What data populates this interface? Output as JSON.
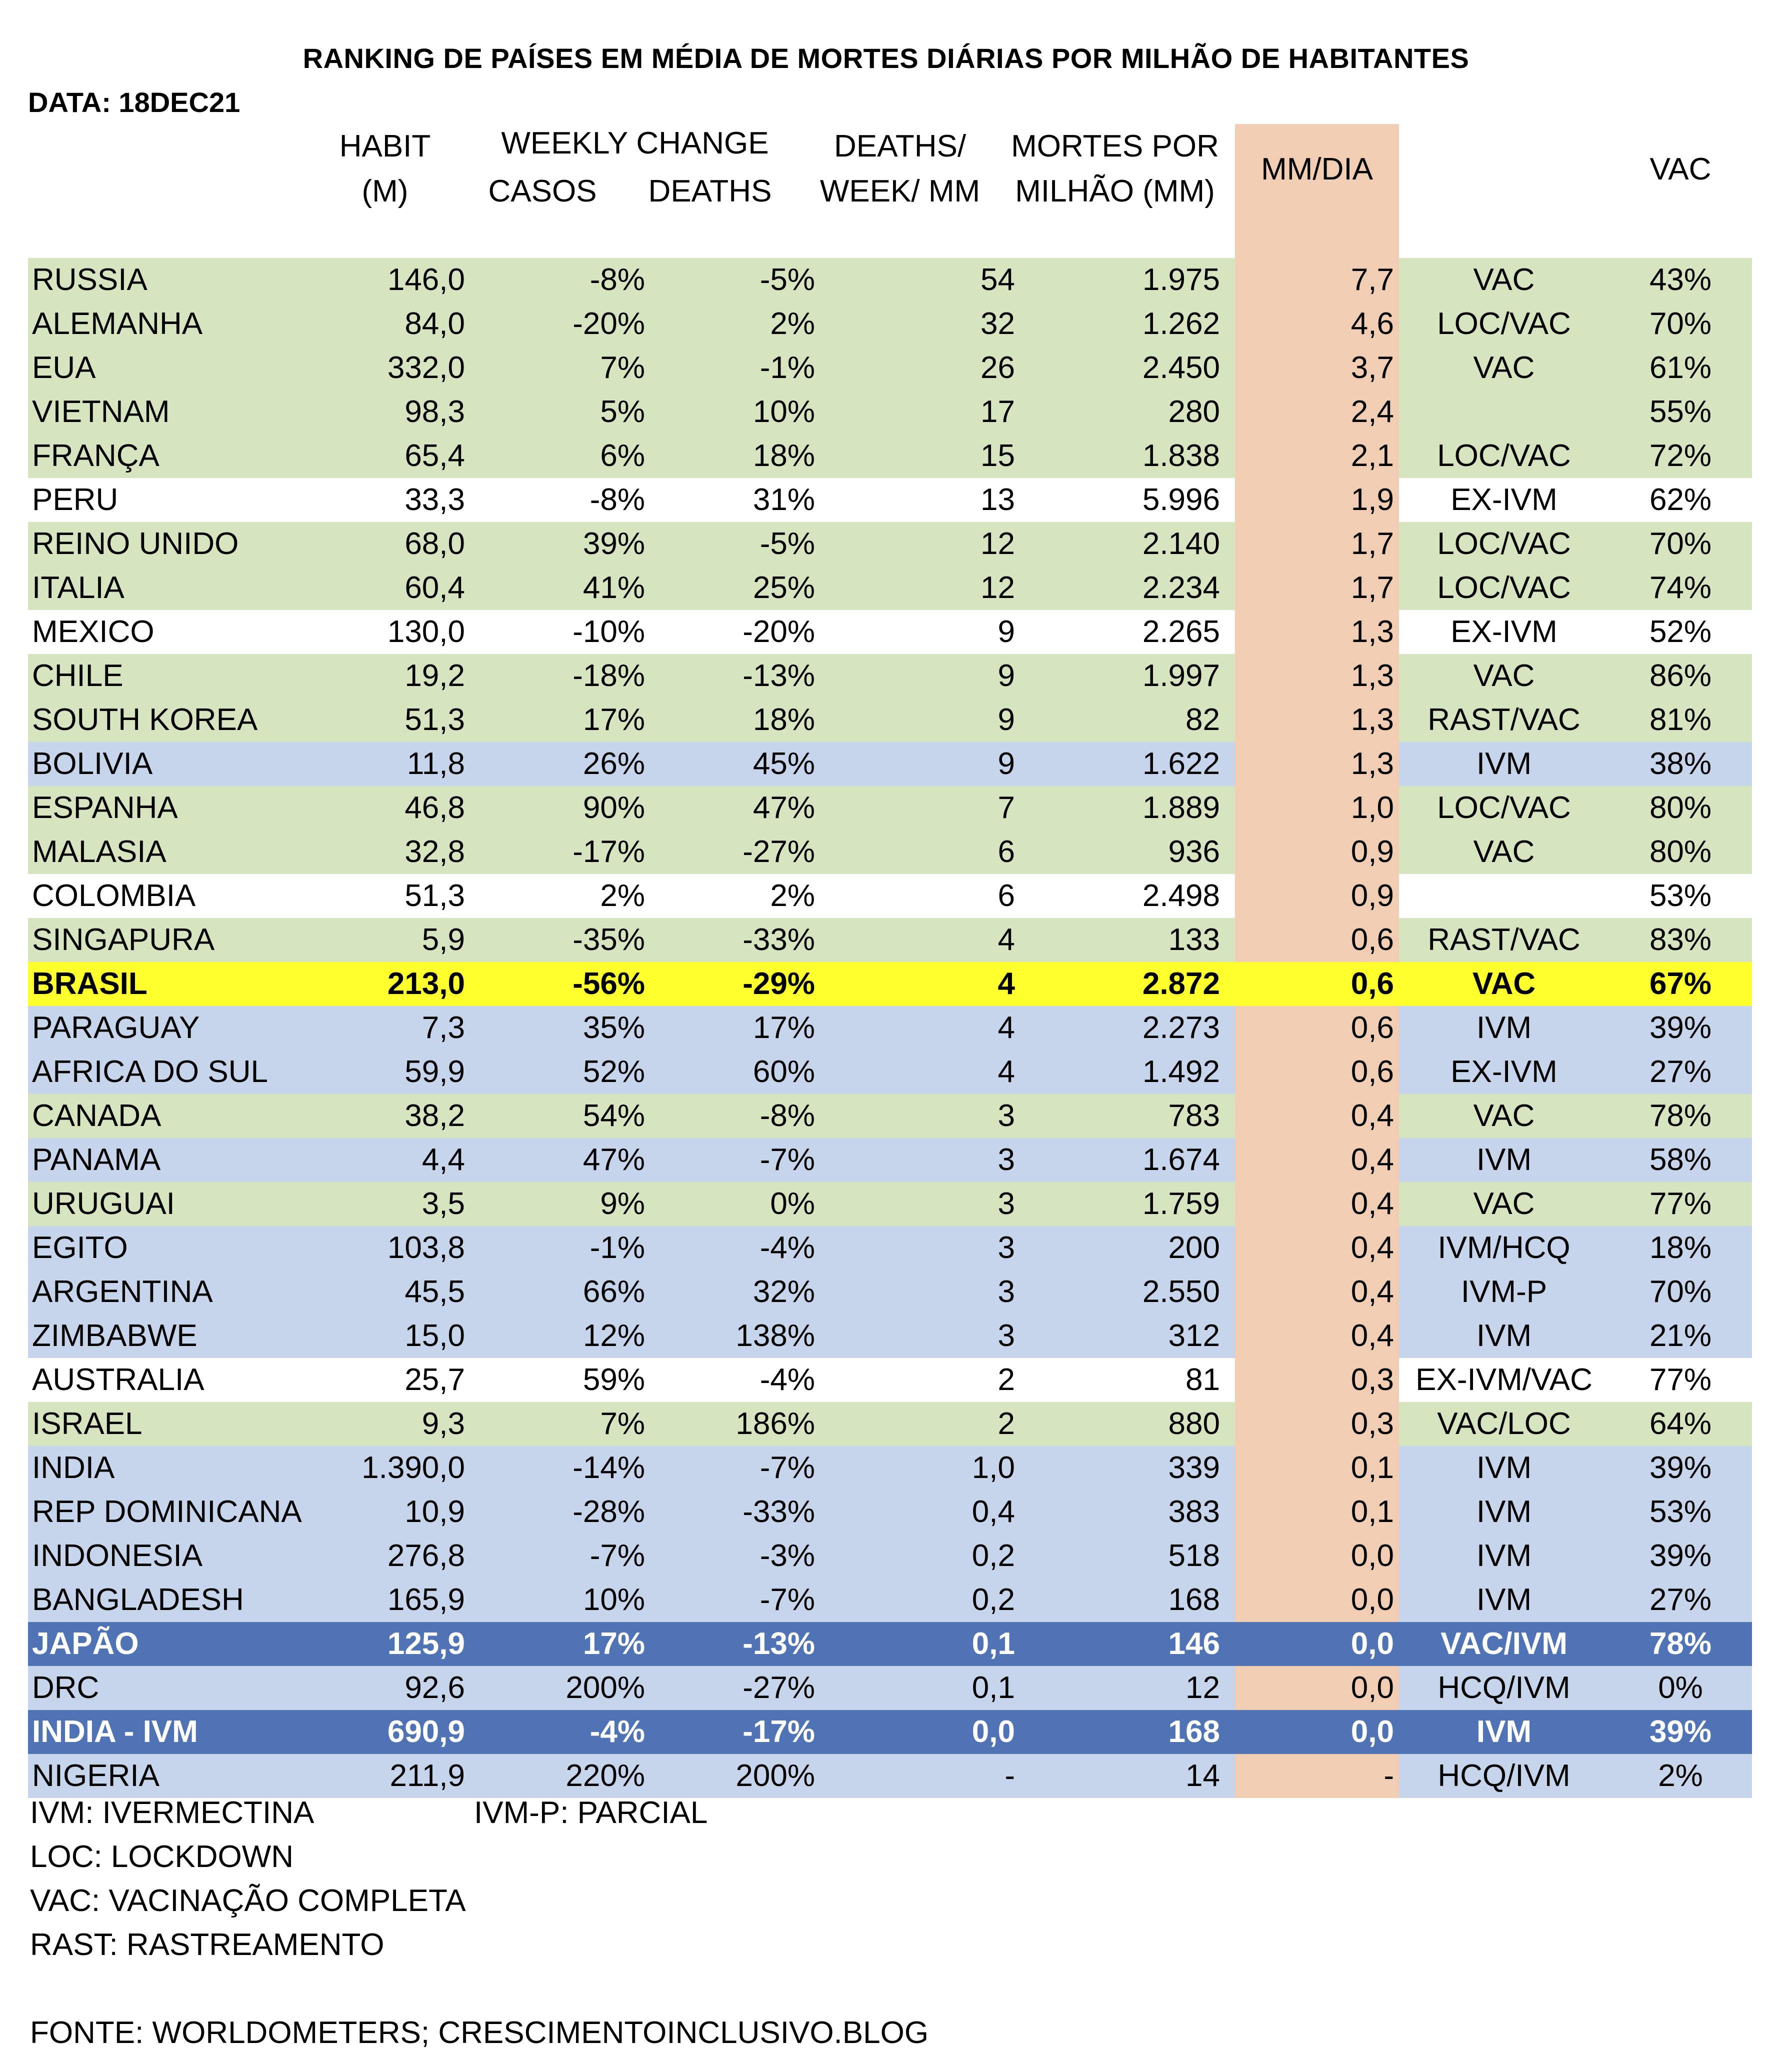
{
  "title": "RANKING DE PAÍSES EM MÉDIA DE MORTES DIÁRIAS POR MILHÃO DE HABITANTES",
  "date": "DATA: 18DEC21",
  "headers": {
    "habit_1": "HABIT",
    "habit_2": "(M)",
    "weekly_change": "WEEKLY CHANGE",
    "casos": "CASOS",
    "deaths": "DEATHS",
    "dwm_1": "DEATHS/",
    "dwm_2": "WEEK/ MM",
    "mortes_1": "MORTES POR",
    "mortes_2": "MILHÃO (MM)",
    "mmdia": "MM/DIA",
    "vac": "VAC"
  },
  "rows": [
    {
      "name": "RUSSIA",
      "habit": "146,0",
      "casos": "-8%",
      "deaths": "-5%",
      "dwm": "54",
      "mortes": "1.975",
      "mmdia": "7,7",
      "tag": "VAC",
      "vac": "43%",
      "color": "green"
    },
    {
      "name": "ALEMANHA",
      "habit": "84,0",
      "casos": "-20%",
      "deaths": "2%",
      "dwm": "32",
      "mortes": "1.262",
      "mmdia": "4,6",
      "tag": "LOC/VAC",
      "vac": "70%",
      "color": "green"
    },
    {
      "name": "EUA",
      "habit": "332,0",
      "casos": "7%",
      "deaths": "-1%",
      "dwm": "26",
      "mortes": "2.450",
      "mmdia": "3,7",
      "tag": "VAC",
      "vac": "61%",
      "color": "green"
    },
    {
      "name": "VIETNAM",
      "habit": "98,3",
      "casos": "5%",
      "deaths": "10%",
      "dwm": "17",
      "mortes": "280",
      "mmdia": "2,4",
      "tag": "",
      "vac": "55%",
      "color": "green"
    },
    {
      "name": "FRANÇA",
      "habit": "65,4",
      "casos": "6%",
      "deaths": "18%",
      "dwm": "15",
      "mortes": "1.838",
      "mmdia": "2,1",
      "tag": "LOC/VAC",
      "vac": "72%",
      "color": "green"
    },
    {
      "name": "PERU",
      "habit": "33,3",
      "casos": "-8%",
      "deaths": "31%",
      "dwm": "13",
      "mortes": "5.996",
      "mmdia": "1,9",
      "tag": "EX-IVM",
      "vac": "62%",
      "color": "white"
    },
    {
      "name": "REINO UNIDO",
      "habit": "68,0",
      "casos": "39%",
      "deaths": "-5%",
      "dwm": "12",
      "mortes": "2.140",
      "mmdia": "1,7",
      "tag": "LOC/VAC",
      "vac": "70%",
      "color": "green"
    },
    {
      "name": "ITALIA",
      "habit": "60,4",
      "casos": "41%",
      "deaths": "25%",
      "dwm": "12",
      "mortes": "2.234",
      "mmdia": "1,7",
      "tag": "LOC/VAC",
      "vac": "74%",
      "color": "green"
    },
    {
      "name": "MEXICO",
      "habit": "130,0",
      "casos": "-10%",
      "deaths": "-20%",
      "dwm": "9",
      "mortes": "2.265",
      "mmdia": "1,3",
      "tag": "EX-IVM",
      "vac": "52%",
      "color": "white"
    },
    {
      "name": "CHILE",
      "habit": "19,2",
      "casos": "-18%",
      "deaths": "-13%",
      "dwm": "9",
      "mortes": "1.997",
      "mmdia": "1,3",
      "tag": "VAC",
      "vac": "86%",
      "color": "green"
    },
    {
      "name": "SOUTH KOREA",
      "habit": "51,3",
      "casos": "17%",
      "deaths": "18%",
      "dwm": "9",
      "mortes": "82",
      "mmdia": "1,3",
      "tag": "RAST/VAC",
      "vac": "81%",
      "color": "green"
    },
    {
      "name": "BOLIVIA",
      "habit": "11,8",
      "casos": "26%",
      "deaths": "45%",
      "dwm": "9",
      "mortes": "1.622",
      "mmdia": "1,3",
      "tag": "IVM",
      "vac": "38%",
      "color": "blue"
    },
    {
      "name": "ESPANHA",
      "habit": "46,8",
      "casos": "90%",
      "deaths": "47%",
      "dwm": "7",
      "mortes": "1.889",
      "mmdia": "1,0",
      "tag": "LOC/VAC",
      "vac": "80%",
      "color": "green"
    },
    {
      "name": "MALASIA",
      "habit": "32,8",
      "casos": "-17%",
      "deaths": "-27%",
      "dwm": "6",
      "mortes": "936",
      "mmdia": "0,9",
      "tag": "VAC",
      "vac": "80%",
      "color": "green"
    },
    {
      "name": "COLOMBIA",
      "habit": "51,3",
      "casos": "2%",
      "deaths": "2%",
      "dwm": "6",
      "mortes": "2.498",
      "mmdia": "0,9",
      "tag": "",
      "vac": "53%",
      "color": "white"
    },
    {
      "name": "SINGAPURA",
      "habit": "5,9",
      "casos": "-35%",
      "deaths": "-33%",
      "dwm": "4",
      "mortes": "133",
      "mmdia": "0,6",
      "tag": "RAST/VAC",
      "vac": "83%",
      "color": "green"
    },
    {
      "name": "BRASIL",
      "habit": "213,0",
      "casos": "-56%",
      "deaths": "-29%",
      "dwm": "4",
      "mortes": "2.872",
      "mmdia": "0,6",
      "tag": "VAC",
      "vac": "67%",
      "color": "yellow"
    },
    {
      "name": "PARAGUAY",
      "habit": "7,3",
      "casos": "35%",
      "deaths": "17%",
      "dwm": "4",
      "mortes": "2.273",
      "mmdia": "0,6",
      "tag": "IVM",
      "vac": "39%",
      "color": "blue"
    },
    {
      "name": "AFRICA DO SUL",
      "habit": "59,9",
      "casos": "52%",
      "deaths": "60%",
      "dwm": "4",
      "mortes": "1.492",
      "mmdia": "0,6",
      "tag": "EX-IVM",
      "vac": "27%",
      "color": "blue"
    },
    {
      "name": "CANADA",
      "habit": "38,2",
      "casos": "54%",
      "deaths": "-8%",
      "dwm": "3",
      "mortes": "783",
      "mmdia": "0,4",
      "tag": "VAC",
      "vac": "78%",
      "color": "green"
    },
    {
      "name": "PANAMA",
      "habit": "4,4",
      "casos": "47%",
      "deaths": "-7%",
      "dwm": "3",
      "mortes": "1.674",
      "mmdia": "0,4",
      "tag": "IVM",
      "vac": "58%",
      "color": "blue"
    },
    {
      "name": "URUGUAI",
      "habit": "3,5",
      "casos": "9%",
      "deaths": "0%",
      "dwm": "3",
      "mortes": "1.759",
      "mmdia": "0,4",
      "tag": "VAC",
      "vac": "77%",
      "color": "green"
    },
    {
      "name": "EGITO",
      "habit": "103,8",
      "casos": "-1%",
      "deaths": "-4%",
      "dwm": "3",
      "mortes": "200",
      "mmdia": "0,4",
      "tag": "IVM/HCQ",
      "vac": "18%",
      "color": "blue"
    },
    {
      "name": "ARGENTINA",
      "habit": "45,5",
      "casos": "66%",
      "deaths": "32%",
      "dwm": "3",
      "mortes": "2.550",
      "mmdia": "0,4",
      "tag": "IVM-P",
      "vac": "70%",
      "color": "blue"
    },
    {
      "name": "ZIMBABWE",
      "habit": "15,0",
      "casos": "12%",
      "deaths": "138%",
      "dwm": "3",
      "mortes": "312",
      "mmdia": "0,4",
      "tag": "IVM",
      "vac": "21%",
      "color": "blue"
    },
    {
      "name": "AUSTRALIA",
      "habit": "25,7",
      "casos": "59%",
      "deaths": "-4%",
      "dwm": "2",
      "mortes": "81",
      "mmdia": "0,3",
      "tag": "EX-IVM/VAC",
      "vac": "77%",
      "color": "white"
    },
    {
      "name": "ISRAEL",
      "habit": "9,3",
      "casos": "7%",
      "deaths": "186%",
      "dwm": "2",
      "mortes": "880",
      "mmdia": "0,3",
      "tag": "VAC/LOC",
      "vac": "64%",
      "color": "green"
    },
    {
      "name": "INDIA",
      "habit": "1.390,0",
      "casos": "-14%",
      "deaths": "-7%",
      "dwm": "1,0",
      "mortes": "339",
      "mmdia": "0,1",
      "tag": "IVM",
      "vac": "39%",
      "color": "blue"
    },
    {
      "name": "REP DOMINICANA",
      "habit": "10,9",
      "casos": "-28%",
      "deaths": "-33%",
      "dwm": "0,4",
      "mortes": "383",
      "mmdia": "0,1",
      "tag": "IVM",
      "vac": "53%",
      "color": "blue"
    },
    {
      "name": "INDONESIA",
      "habit": "276,8",
      "casos": "-7%",
      "deaths": "-3%",
      "dwm": "0,2",
      "mortes": "518",
      "mmdia": "0,0",
      "tag": "IVM",
      "vac": "39%",
      "color": "blue"
    },
    {
      "name": "BANGLADESH",
      "habit": "165,9",
      "casos": "10%",
      "deaths": "-7%",
      "dwm": "0,2",
      "mortes": "168",
      "mmdia": "0,0",
      "tag": "IVM",
      "vac": "27%",
      "color": "blue"
    },
    {
      "name": "JAPÃO",
      "habit": "125,9",
      "casos": "17%",
      "deaths": "-13%",
      "dwm": "0,1",
      "mortes": "146",
      "mmdia": "0,0",
      "tag": "VAC/IVM",
      "vac": "78%",
      "color": "dark"
    },
    {
      "name": "DRC",
      "habit": "92,6",
      "casos": "200%",
      "deaths": "-27%",
      "dwm": "0,1",
      "mortes": "12",
      "mmdia": "0,0",
      "tag": "HCQ/IVM",
      "vac": "0%",
      "color": "blue"
    },
    {
      "name": "INDIA - IVM",
      "habit": "690,9",
      "casos": "-4%",
      "deaths": "-17%",
      "dwm": "0,0",
      "mortes": "168",
      "mmdia": "0,0",
      "tag": "IVM",
      "vac": "39%",
      "color": "dark"
    },
    {
      "name": "NIGERIA",
      "habit": "211,9",
      "casos": "220%",
      "deaths": "200%",
      "dwm": "-",
      "mortes": "14",
      "mmdia": "-",
      "tag": "HCQ/IVM",
      "vac": "2%",
      "color": "blue"
    }
  ],
  "legend": {
    "ivm": "IVM: IVERMECTINA",
    "ivmp": "IVM-P: PARCIAL",
    "loc": "LOC: LOCKDOWN",
    "vac": "VAC: VACINAÇÃO COMPLETA",
    "rast": "RAST: RASTREAMENTO",
    "source": "FONTE: WORLDOMETERS; CRESCIMENTOINCLUSIVO.BLOG"
  }
}
